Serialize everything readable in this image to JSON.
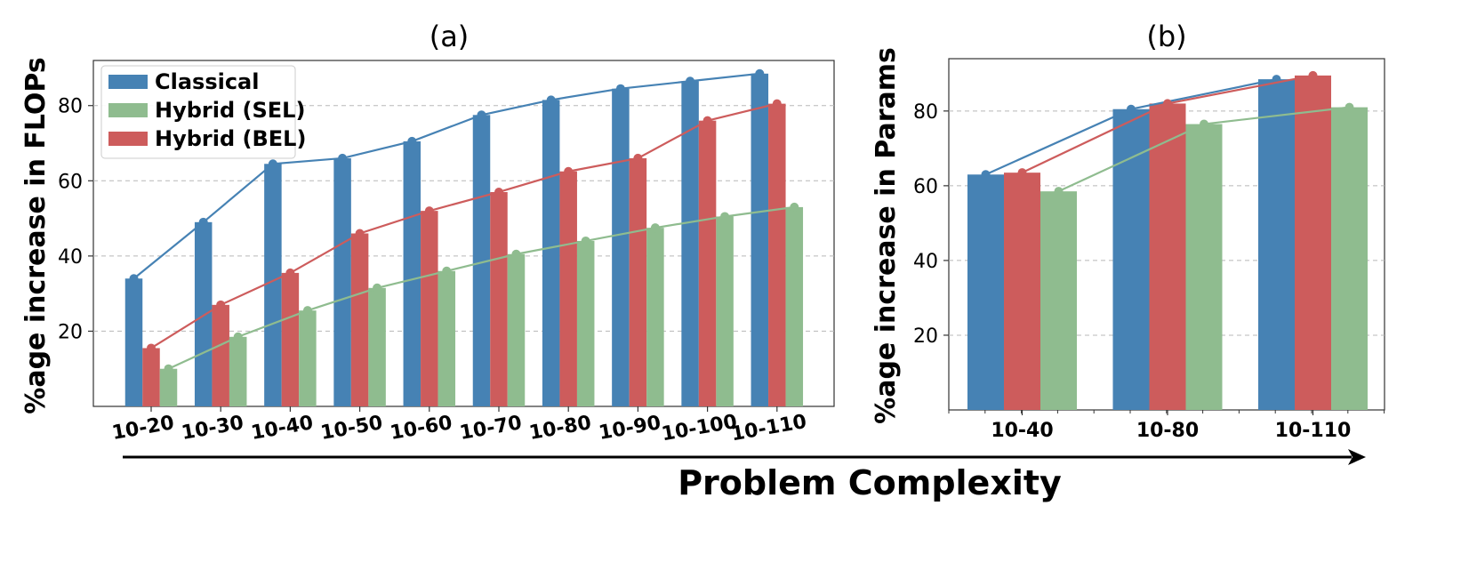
{
  "chart_data": [
    {
      "type": "bar",
      "title": "(a)",
      "ylabel": "%age increase in FLOPs",
      "xlabel": "",
      "categories": [
        "10-20",
        "10-30",
        "10-40",
        "10-50",
        "10-60",
        "10-70",
        "10-80",
        "10-90",
        "10-100",
        "10-110"
      ],
      "yticks": [
        20,
        40,
        60,
        80
      ],
      "ylim": [
        0,
        92
      ],
      "grid": true,
      "legend_position": "top-left",
      "series": [
        {
          "name": "Classical",
          "color": "#4682b4",
          "values": [
            34,
            49,
            64.5,
            66,
            70.5,
            77.5,
            81.5,
            84.5,
            86.5,
            88.5
          ]
        },
        {
          "name": "Hybrid (SEL)",
          "color": "#8fbc8f",
          "values": [
            10,
            18.5,
            25.5,
            31.5,
            36,
            40.5,
            44,
            47.5,
            50.5,
            53
          ]
        },
        {
          "name": "Hybrid (BEL)",
          "color": "#cd5c5c",
          "values": [
            15.5,
            27,
            35.5,
            46,
            52,
            57,
            62.5,
            66,
            76,
            80.5
          ]
        }
      ]
    },
    {
      "type": "bar",
      "title": "(b)",
      "ylabel": "%age increase in Params",
      "xlabel": "",
      "categories": [
        "10-40",
        "10-80",
        "10-110"
      ],
      "yticks": [
        20,
        40,
        60,
        80
      ],
      "ylim": [
        0,
        94
      ],
      "grid": true,
      "series": [
        {
          "name": "Classical",
          "color": "#4682b4",
          "values": [
            63,
            80.5,
            88.5
          ]
        },
        {
          "name": "Hybrid (BEL)",
          "color": "#cd5c5c",
          "values": [
            63.5,
            82,
            89.5
          ]
        },
        {
          "name": "Hybrid (SEL)",
          "color": "#8fbc8f",
          "values": [
            58.5,
            76.5,
            81
          ]
        }
      ]
    }
  ],
  "bottom_label": "Problem Complexity"
}
